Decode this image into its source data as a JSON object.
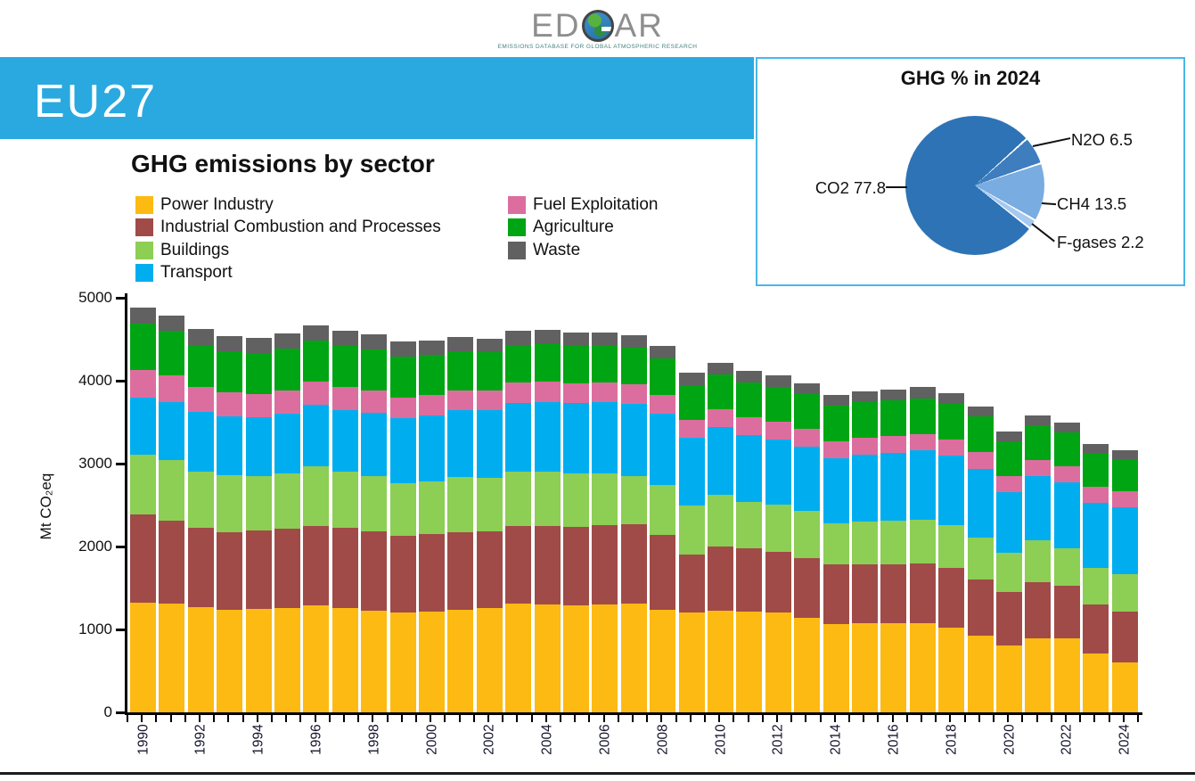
{
  "logo": {
    "text_left": "ED",
    "text_right": "AR",
    "tagline": "EMISSIONS DATABASE FOR GLOBAL ATMOSPHERIC RESEARCH"
  },
  "banner": {
    "label": "EU27",
    "color": "#2AA9E0"
  },
  "pie_panel": {
    "title": "GHG % in 2024",
    "border_color": "#49B7E8"
  },
  "bar_section": {
    "title": "GHG emissions by sector",
    "ylabel": "Mt CO₂eq"
  },
  "chart_data": [
    {
      "type": "pie",
      "title": "GHG % in 2024",
      "slices": [
        {
          "label": "CO2",
          "value": 77.8,
          "display": "CO2 77.8",
          "color": "#2E73B5"
        },
        {
          "label": "N2O",
          "value": 6.5,
          "display": "N2O 6.5",
          "color": "#3E7DBE"
        },
        {
          "label": "CH4",
          "value": 13.5,
          "display": "CH4 13.5",
          "color": "#79ACE0"
        },
        {
          "label": "F-gases",
          "value": 2.2,
          "display": "F-gases 2.2",
          "color": "#A6C9EF"
        }
      ],
      "draw_order": [
        1,
        2,
        3,
        0
      ],
      "start_angle_deg_from_top_clockwise": 48,
      "slice_gap_deg": 1.6,
      "legend_position": "callout-labels"
    },
    {
      "type": "bar",
      "stacked": true,
      "title": "GHG emissions by sector",
      "xlabel": "",
      "ylabel": "Mt CO2eq",
      "ylim": [
        0,
        5000
      ],
      "yticks": [
        0,
        1000,
        2000,
        3000,
        4000,
        5000
      ],
      "grid": false,
      "legend_position": "top-left two columns",
      "categories": [
        1990,
        1991,
        1992,
        1993,
        1994,
        1995,
        1996,
        1997,
        1998,
        1999,
        2000,
        2001,
        2002,
        2003,
        2004,
        2005,
        2006,
        2007,
        2008,
        2009,
        2010,
        2011,
        2012,
        2013,
        2014,
        2015,
        2016,
        2017,
        2018,
        2019,
        2020,
        2021,
        2022,
        2023,
        2024
      ],
      "xtick_labels": [
        "1990",
        "1992",
        "1994",
        "1996",
        "1998",
        "2000",
        "2002",
        "2004",
        "2006",
        "2008",
        "2010",
        "2012",
        "2014",
        "2016",
        "2018",
        "2020",
        "2022",
        "2024"
      ],
      "series": [
        {
          "name": "Power Industry",
          "color": "#FDBA12",
          "values": [
            1320,
            1315,
            1265,
            1240,
            1250,
            1260,
            1290,
            1255,
            1230,
            1200,
            1210,
            1240,
            1260,
            1310,
            1300,
            1295,
            1305,
            1315,
            1240,
            1200,
            1230,
            1220,
            1205,
            1145,
            1065,
            1075,
            1070,
            1075,
            1025,
            925,
            810,
            890,
            890,
            710,
            600
          ]
        },
        {
          "name": "Industrial Combustion and Processes",
          "color": "#A04B48",
          "values": [
            1070,
            1000,
            960,
            935,
            945,
            955,
            960,
            970,
            950,
            925,
            945,
            935,
            925,
            940,
            950,
            945,
            950,
            950,
            900,
            700,
            770,
            760,
            730,
            720,
            715,
            715,
            710,
            720,
            715,
            680,
            640,
            675,
            640,
            590,
            620
          ]
        },
        {
          "name": "Buildings",
          "color": "#8DCE55",
          "values": [
            715,
            730,
            680,
            680,
            650,
            665,
            720,
            680,
            670,
            640,
            635,
            660,
            640,
            655,
            650,
            640,
            625,
            580,
            605,
            590,
            625,
            555,
            570,
            565,
            500,
            515,
            530,
            530,
            515,
            500,
            480,
            510,
            450,
            445,
            450
          ]
        },
        {
          "name": "Transport",
          "color": "#00AEEF",
          "values": [
            695,
            700,
            715,
            710,
            715,
            725,
            735,
            745,
            765,
            785,
            795,
            805,
            815,
            825,
            845,
            850,
            860,
            875,
            855,
            820,
            815,
            810,
            780,
            775,
            785,
            800,
            820,
            835,
            840,
            835,
            730,
            770,
            790,
            780,
            800
          ]
        },
        {
          "name": "Fuel Exploitation",
          "color": "#DC6E9F",
          "values": [
            330,
            315,
            300,
            290,
            280,
            280,
            280,
            270,
            265,
            250,
            245,
            245,
            240,
            245,
            245,
            240,
            240,
            235,
            230,
            215,
            215,
            215,
            215,
            210,
            205,
            205,
            200,
            200,
            200,
            200,
            190,
            195,
            200,
            195,
            195
          ]
        },
        {
          "name": "Agriculture",
          "color": "#00A513",
          "values": [
            560,
            540,
            515,
            500,
            495,
            500,
            500,
            500,
            500,
            495,
            480,
            475,
            465,
            460,
            460,
            450,
            445,
            445,
            440,
            425,
            420,
            420,
            420,
            420,
            425,
            430,
            430,
            430,
            430,
            425,
            420,
            420,
            405,
            400,
            390
          ]
        },
        {
          "name": "Waste",
          "color": "#616161",
          "values": [
            190,
            190,
            185,
            185,
            185,
            185,
            185,
            180,
            180,
            175,
            170,
            170,
            165,
            165,
            160,
            160,
            155,
            150,
            150,
            145,
            145,
            140,
            140,
            135,
            135,
            130,
            130,
            130,
            125,
            125,
            120,
            120,
            115,
            115,
            110
          ]
        }
      ]
    }
  ]
}
